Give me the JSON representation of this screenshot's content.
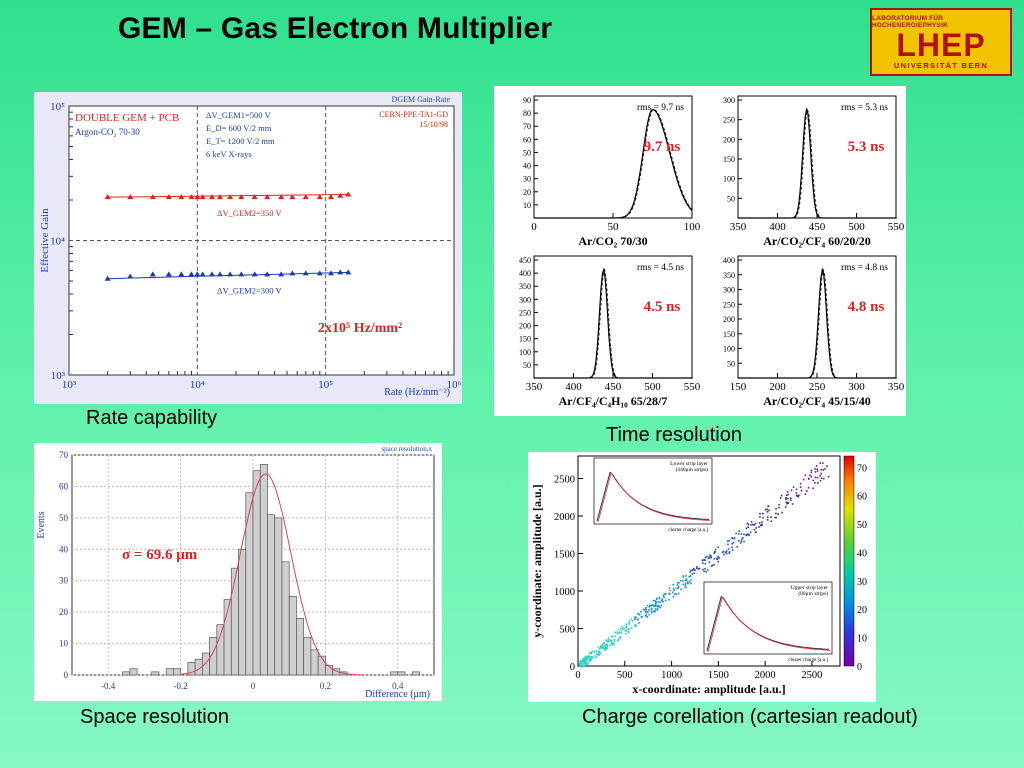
{
  "title": "GEM – Gas Electron Multiplier",
  "logo": {
    "line1": "LABORATORIUM FÜR HOCHENERGIEPHYSIK",
    "line2": "LHEP",
    "line3": "UNIVERSITÄT BERN"
  },
  "captions": {
    "rate": "Rate capability",
    "time": "Time resolution",
    "space": "Space resolution",
    "charge": "Charge corellation (cartesian readout)"
  },
  "chart_data": [
    {
      "type": "scatter",
      "title": "DGEM Gain-Rate",
      "ylabel": "Effective Gain",
      "xlabel": "Rate (Hz/mm⁻²)",
      "xscale": "log",
      "yscale": "log",
      "xlim": [
        1000,
        1000000
      ],
      "ylim": [
        1000,
        100000
      ],
      "x_tick_labels": [
        "10³",
        "10⁴",
        "10⁵",
        "10⁶"
      ],
      "y_tick_labels": [
        "10³",
        "10⁴",
        "10⁵"
      ],
      "text_left": [
        "DOUBLE GEM + PCB",
        "Argon-CO₂ 70-30"
      ],
      "text_mid": [
        "ΔV_GEM1=500 V",
        "E_D= 600 V/2 mm",
        "E_T= 1200 V/2 mm",
        "6 keV X-rays"
      ],
      "text_right": [
        "CERN-PPE-TA1-GD",
        "15/10/98"
      ],
      "annotation": "2x10⁵ Hz/mm²",
      "annotation_color": "#e02020",
      "series": [
        {
          "name": "ΔV_GEM2=350 V",
          "color": "#e02020",
          "x": [
            2000,
            3000,
            4500,
            6000,
            7500,
            9000,
            10000,
            11000,
            13000,
            15000,
            18000,
            22000,
            28000,
            35000,
            45000,
            55000,
            70000,
            90000,
            110000,
            130000,
            150000
          ],
          "y": [
            21000,
            21000,
            21000,
            21000,
            21000,
            21000,
            21000,
            21000,
            21000,
            21000,
            21000,
            21000,
            21000,
            21000,
            21000,
            21000,
            21000,
            21000,
            21000,
            21500,
            22000
          ]
        },
        {
          "name": "ΔV_GEM2=300 V",
          "color": "#1a3ab0",
          "x": [
            2000,
            3000,
            4500,
            6000,
            7500,
            9000,
            10000,
            11000,
            13000,
            15000,
            18000,
            22000,
            28000,
            35000,
            45000,
            55000,
            70000,
            90000,
            110000,
            130000,
            150000
          ],
          "y": [
            5200,
            5400,
            5600,
            5600,
            5600,
            5600,
            5600,
            5600,
            5600,
            5600,
            5600,
            5600,
            5600,
            5600,
            5600,
            5700,
            5700,
            5700,
            5700,
            5800,
            5800
          ]
        }
      ]
    },
    {
      "type": "line",
      "title": "Time resolution",
      "panels": [
        {
          "label": "rms = 9.7 ns",
          "big": "9.7 ns",
          "gas": "Ar/CO₂ 70/30",
          "xlim": [
            0,
            100
          ],
          "xticks": [
            "0",
            "50",
            "100"
          ],
          "ymax": 90,
          "yticks": [
            "10",
            "20",
            "30",
            "40",
            "50",
            "60",
            "70",
            "80",
            "90"
          ],
          "peak": 75,
          "sigma": 6,
          "tail": true
        },
        {
          "label": "rms = 5.3 ns",
          "big": "5.3 ns",
          "gas": "Ar/CO₂/CF₄ 60/20/20",
          "xlim": [
            350,
            550
          ],
          "xticks": [
            "350",
            "400",
            "450",
            "500",
            "550"
          ],
          "ymax": 300,
          "yticks": [
            "50",
            "100",
            "150",
            "200",
            "250",
            "300"
          ],
          "peak": 437,
          "sigma": 5,
          "tail": false
        },
        {
          "label": "rms = 4.5 ns",
          "big": "4.5 ns",
          "gas": "Ar/CF₄/C₄H₁₀ 65/28/7",
          "xlim": [
            350,
            550
          ],
          "xticks": [
            "350",
            "400",
            "450",
            "500",
            "550"
          ],
          "ymax": 450,
          "yticks": [
            "50",
            "100",
            "150",
            "200",
            "250",
            "300",
            "350",
            "400",
            "450"
          ],
          "peak": 438,
          "sigma": 5,
          "tail": false
        },
        {
          "label": "rms = 4.8 ns",
          "big": "4.8 ns",
          "gas": "Ar/CO₂/CF₄ 45/15/40",
          "xlim": [
            150,
            350
          ],
          "xticks": [
            "150",
            "200",
            "250",
            "300",
            "350"
          ],
          "ymax": 400,
          "yticks": [
            "50",
            "100",
            "150",
            "200",
            "250",
            "300",
            "350",
            "400"
          ],
          "peak": 257,
          "sigma": 5,
          "tail": false
        }
      ]
    },
    {
      "type": "bar",
      "title": "space resolution.x",
      "xlabel": "Difference (μm)",
      "ylabel": "Events",
      "xlim": [
        -0.5,
        0.5
      ],
      "ylim": [
        0,
        70
      ],
      "xticks": [
        "-0.4",
        "-0.2",
        "0",
        "0.2",
        "0.4"
      ],
      "yticks": [
        "0",
        "10",
        "20",
        "30",
        "40",
        "50",
        "60",
        "70"
      ],
      "annotation": "σ = 69.6 μm",
      "bin_width": 0.02,
      "bin_starts": [
        -0.36,
        -0.34,
        -0.28,
        -0.24,
        -0.22,
        -0.18,
        -0.16,
        -0.14,
        -0.12,
        -0.1,
        -0.08,
        -0.06,
        -0.04,
        -0.02,
        0.0,
        0.02,
        0.04,
        0.06,
        0.08,
        0.1,
        0.12,
        0.14,
        0.16,
        0.18,
        0.2,
        0.22,
        0.24,
        0.38,
        0.4,
        0.44
      ],
      "values": [
        1,
        2,
        1,
        2,
        2,
        4,
        5,
        7,
        12,
        16,
        24,
        34,
        40,
        58,
        65,
        67,
        51,
        50,
        36,
        25,
        18,
        12,
        8,
        6,
        3,
        2,
        1,
        1,
        1,
        1
      ]
    },
    {
      "type": "heatmap",
      "title": "Charge corellation (cartesian readout)",
      "xlabel": "x-coordinate: amplitude [a.u.]",
      "ylabel": "y-coordinate: amplitude [a.u.]",
      "xlim": [
        0,
        2800
      ],
      "ylim": [
        0,
        2800
      ],
      "xticks": [
        "0",
        "500",
        "1000",
        "1500",
        "2000",
        "2500"
      ],
      "yticks": [
        "0",
        "500",
        "1000",
        "1500",
        "2000",
        "2500"
      ],
      "colorbar_ticks": [
        "0",
        "10",
        "20",
        "30",
        "40",
        "50",
        "60",
        "70"
      ],
      "inset1": {
        "title": "Lower strip layer",
        "subtitle": "(340μm strips)",
        "xlabel": "cluster charge [a.u.]"
      },
      "inset2": {
        "title": "Upper strip layer",
        "subtitle": "(80μm strips)",
        "xlabel": "cluster charge [a.u.]"
      }
    }
  ]
}
